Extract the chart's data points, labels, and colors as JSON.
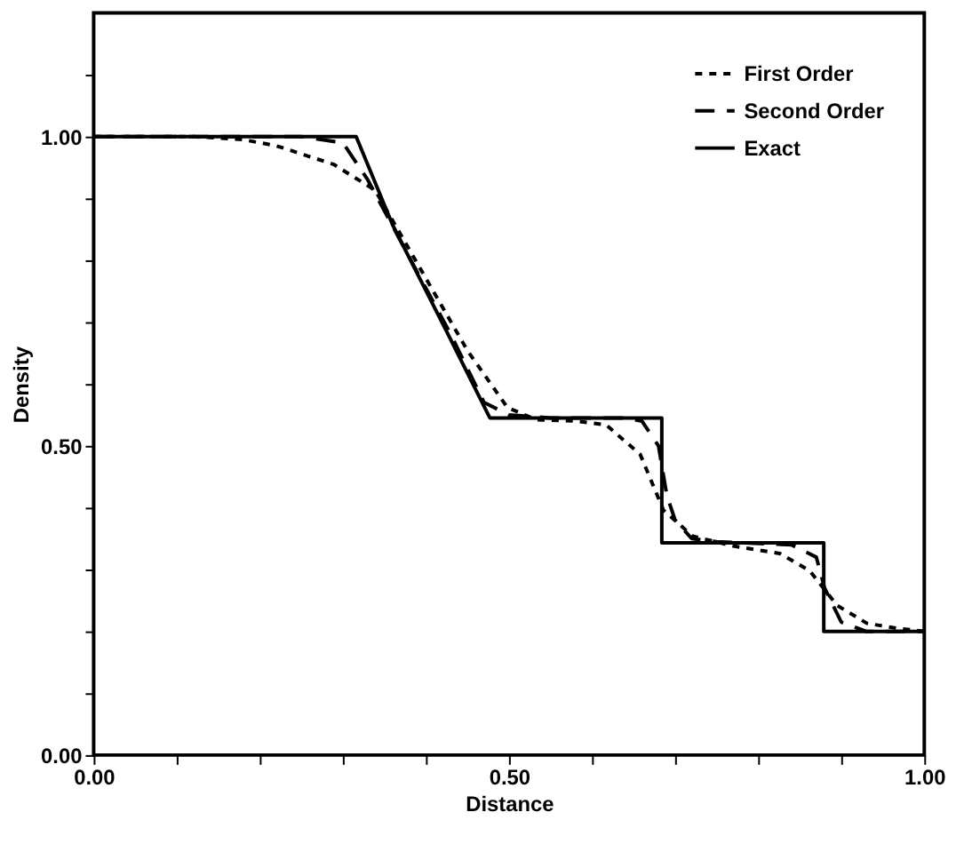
{
  "chart_data": {
    "type": "line",
    "xlabel": "Distance",
    "ylabel": "Density",
    "xlim": [
      0,
      1
    ],
    "ylim": [
      0,
      1.2
    ],
    "xticks": [
      {
        "value": 0,
        "label": "0.00"
      },
      {
        "value": 0.1,
        "label": null
      },
      {
        "value": 0.2,
        "label": null
      },
      {
        "value": 0.3,
        "label": null
      },
      {
        "value": 0.4,
        "label": null
      },
      {
        "value": 0.5,
        "label": "0.50"
      },
      {
        "value": 0.6,
        "label": null
      },
      {
        "value": 0.7,
        "label": null
      },
      {
        "value": 0.8,
        "label": null
      },
      {
        "value": 0.9,
        "label": null
      },
      {
        "value": 1,
        "label": "1.00"
      }
    ],
    "yticks": [
      {
        "value": 0,
        "label": "0.00"
      },
      {
        "value": 0.1,
        "label": null
      },
      {
        "value": 0.2,
        "label": null
      },
      {
        "value": 0.3,
        "label": null
      },
      {
        "value": 0.4,
        "label": null
      },
      {
        "value": 0.5,
        "label": "0.50"
      },
      {
        "value": 0.6,
        "label": null
      },
      {
        "value": 0.7,
        "label": null
      },
      {
        "value": 0.8,
        "label": null
      },
      {
        "value": 0.9,
        "label": null
      },
      {
        "value": 1,
        "label": "1.00"
      },
      {
        "value": 1.1,
        "label": null
      }
    ],
    "grid": false,
    "legend": "top right",
    "marker": "none",
    "series": [
      {
        "name": "First Order",
        "color": "#000000",
        "line_style": "dotted",
        "x": [
          0,
          0.12,
          0.18,
          0.22,
          0.289,
          0.339,
          0.393,
          0.45,
          0.498,
          0.533,
          0.58,
          0.617,
          0.658,
          0.686,
          0.721,
          0.77,
          0.826,
          0.862,
          0.895,
          0.931,
          0.967,
          1
        ],
        "values": [
          1,
          1,
          0.995,
          0.985,
          0.955,
          0.913,
          0.787,
          0.654,
          0.562,
          0.542,
          0.54,
          0.534,
          0.486,
          0.396,
          0.354,
          0.338,
          0.326,
          0.298,
          0.242,
          0.213,
          0.205,
          0.2
        ]
      },
      {
        "name": "Second Order",
        "color": "#000000",
        "line_style": "dashed",
        "x": [
          0,
          0.25,
          0.3,
          0.33,
          0.43,
          0.47,
          0.5,
          0.55,
          0.64,
          0.66,
          0.68,
          0.69,
          0.7,
          0.72,
          0.75,
          0.84,
          0.87,
          0.88,
          0.9,
          0.93,
          1
        ],
        "values": [
          1,
          1,
          0.99,
          0.93,
          0.68,
          0.57,
          0.55,
          0.545,
          0.545,
          0.54,
          0.5,
          0.42,
          0.38,
          0.35,
          0.345,
          0.34,
          0.32,
          0.27,
          0.215,
          0.2,
          0.2
        ]
      },
      {
        "name": "Exact",
        "color": "#000000",
        "line_style": "solid",
        "x": [
          0,
          0.316,
          0.36,
          0.429,
          0.477,
          0.684,
          0.684,
          0.879,
          0.879,
          1
        ],
        "values": [
          1,
          1,
          0.857,
          0.674,
          0.545,
          0.545,
          0.343,
          0.343,
          0.2,
          0.2
        ]
      }
    ]
  }
}
